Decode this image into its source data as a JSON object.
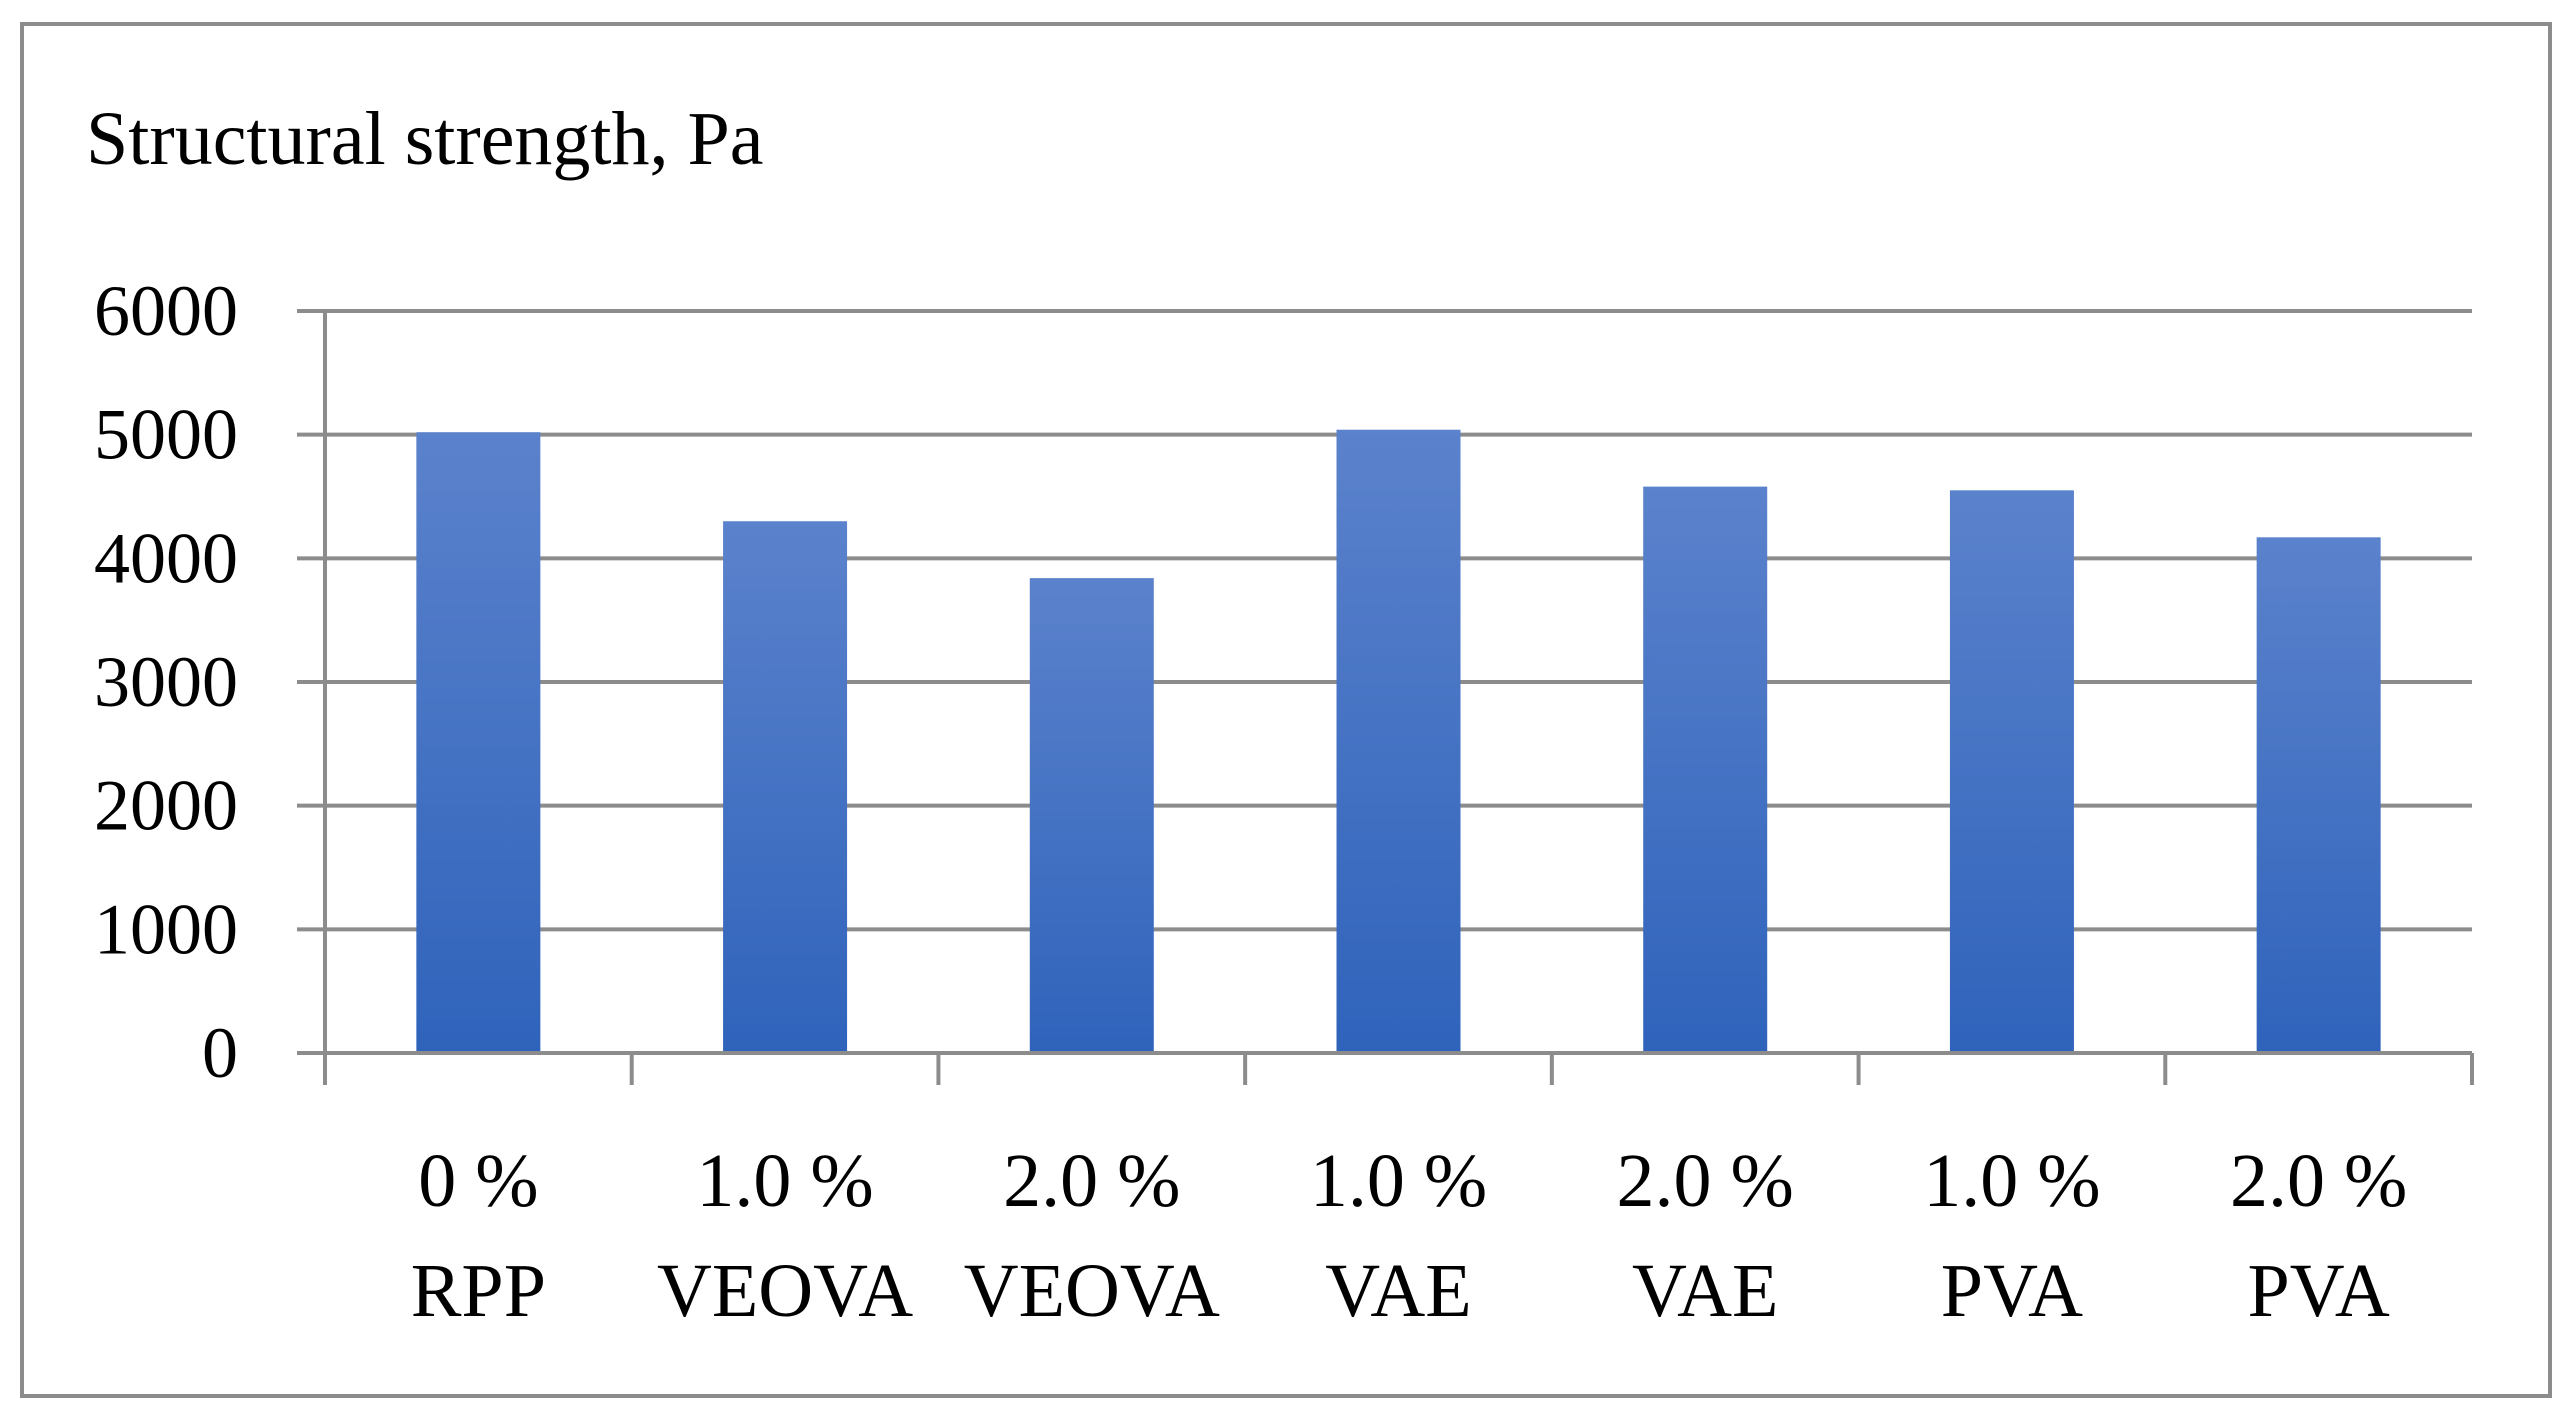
{
  "chart_data": {
    "type": "bar",
    "title": "Structural strength, Pa",
    "xlabel": "",
    "ylabel": "Structural strength, Pa",
    "categories": [
      [
        "0 %",
        "RPP"
      ],
      [
        "1.0 %",
        "VEOVA"
      ],
      [
        "2.0 %",
        "VEOVA"
      ],
      [
        "1.0 %",
        "VAE"
      ],
      [
        "2.0 %",
        "VAE"
      ],
      [
        "1.0 %",
        "PVA"
      ],
      [
        "2.0 %",
        "PVA"
      ]
    ],
    "values": [
      5020,
      4300,
      3840,
      5040,
      4580,
      4550,
      4170
    ],
    "ylim": [
      0,
      6000
    ],
    "yticks": [
      "0",
      "1000",
      "2000",
      "3000",
      "4000",
      "5000",
      "6000"
    ],
    "ytick_values": [
      0,
      1000,
      2000,
      3000,
      4000,
      5000,
      6000
    ],
    "grid": true,
    "legend": "none",
    "colors": {
      "bar_top": "#5b82cc",
      "bar_bottom": "#2f63bb",
      "grid": "#8c8c8c",
      "frame": "#8c8c8c"
    }
  }
}
